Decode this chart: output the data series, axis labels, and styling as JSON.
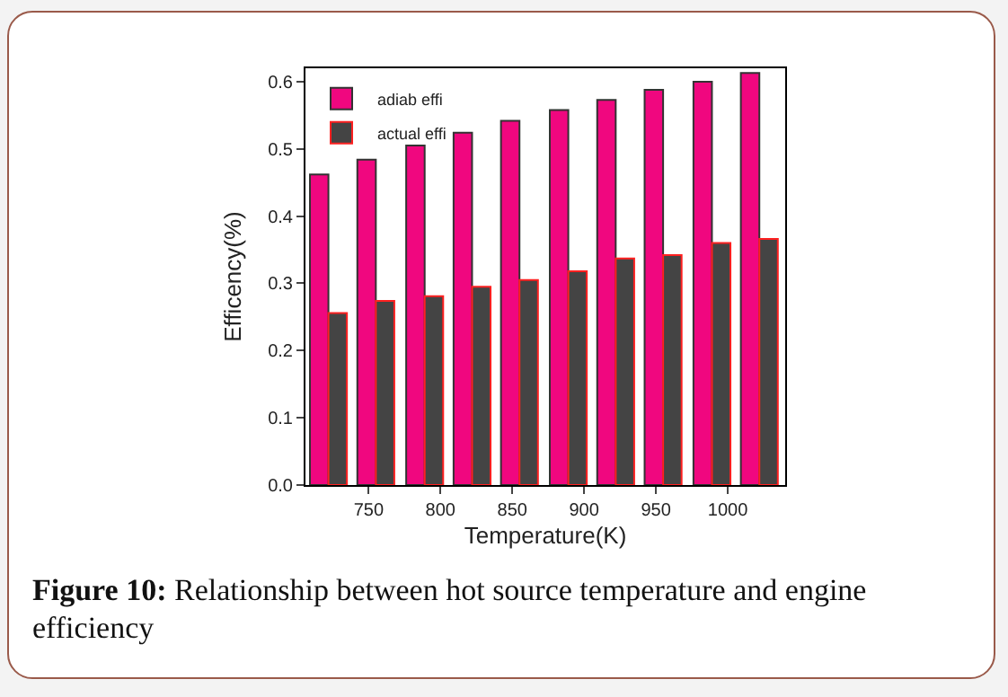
{
  "chart_data": {
    "type": "bar",
    "xlabel": "Temperature(K)",
    "ylabel": "Efficency(%)",
    "x": [
      722,
      755,
      789,
      822,
      855,
      889,
      922,
      955,
      989,
      1022
    ],
    "series": [
      {
        "name": "adiab effi",
        "color": "#f0077f",
        "values": [
          0.462,
          0.484,
          0.505,
          0.524,
          0.542,
          0.558,
          0.573,
          0.588,
          0.6,
          0.613
        ]
      },
      {
        "name": "actual effi",
        "color": "#444444",
        "values": [
          0.256,
          0.274,
          0.281,
          0.295,
          0.305,
          0.318,
          0.337,
          0.342,
          0.36,
          0.366
        ]
      }
    ],
    "xlim": [
      706,
      1040
    ],
    "xticks": [
      750,
      800,
      850,
      900,
      950,
      1000
    ],
    "ylim": [
      0,
      0.62
    ],
    "yticks": [
      {
        "value": 0,
        "label": "0.0"
      },
      0.1,
      0.2,
      0.3,
      0.4,
      0.5,
      0.6
    ],
    "grid": false,
    "legend": "top left",
    "annotations": [
      "Figure 10: Relationship between hot source temperature and engine efficiency"
    ]
  }
}
